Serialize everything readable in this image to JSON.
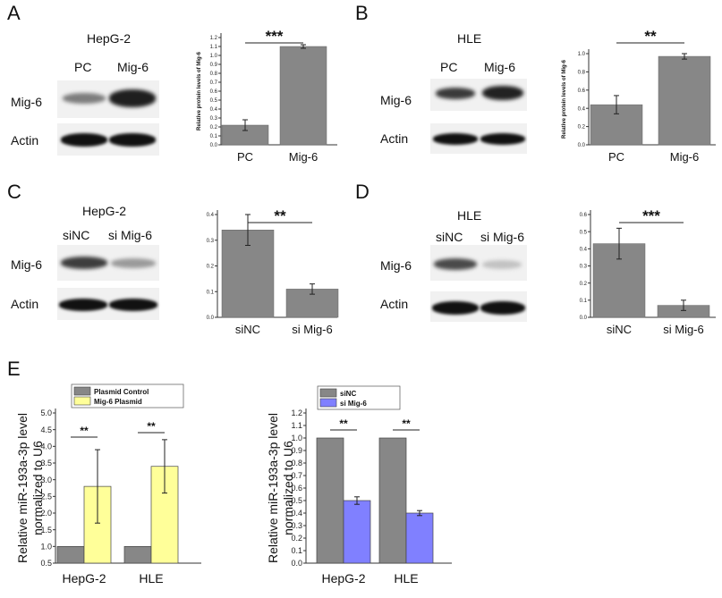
{
  "panels": {
    "a": {
      "letter": "A",
      "cell_line": "HepG-2",
      "lanes": [
        "PC",
        "Mig-6"
      ],
      "rows": [
        "Mig-6",
        "Actin"
      ]
    },
    "b": {
      "letter": "B",
      "cell_line": "HLE",
      "lanes": [
        "PC",
        "Mig-6"
      ],
      "rows": [
        "Mig-6",
        "Actin"
      ]
    },
    "c": {
      "letter": "C",
      "cell_line": "HepG-2",
      "lanes": [
        "siNC",
        "si Mig-6"
      ],
      "rows": [
        "Mig-6",
        "Actin"
      ]
    },
    "d": {
      "letter": "D",
      "cell_line": "HLE",
      "lanes": [
        "siNC",
        "si Mig-6"
      ],
      "rows": [
        "Mig-6",
        "Actin"
      ]
    },
    "e": {
      "letter": "E"
    }
  },
  "colors": {
    "bar_gray": "#878787",
    "yellow": "#ffff99",
    "blue": "#8080ff"
  },
  "chart_data": [
    {
      "id": "chartA",
      "type": "bar",
      "categories": [
        "PC",
        "Mig-6"
      ],
      "values": [
        0.22,
        1.1
      ],
      "errors": [
        0.06,
        0.02
      ],
      "ylabel": "Relative protein levels of Mig-6",
      "ylim": [
        0,
        1.2
      ],
      "yticks": [
        "0.0",
        "0.1",
        "0.2",
        "0.3",
        "0.4",
        "0.5",
        "0.6",
        "0.7",
        "0.8",
        "0.9",
        "1.0",
        "1.1",
        "1.2"
      ],
      "significance": "***"
    },
    {
      "id": "chartB",
      "type": "bar",
      "categories": [
        "PC",
        "Mig-6"
      ],
      "values": [
        0.44,
        0.97
      ],
      "errors": [
        0.1,
        0.03
      ],
      "ylabel": "Relative protein levels of Mig-6",
      "ylim": [
        0,
        1.0
      ],
      "yticks": [
        "0.0",
        "0.2",
        "0.4",
        "0.6",
        "0.8",
        "1.0"
      ],
      "significance": "**"
    },
    {
      "id": "chartC",
      "type": "bar",
      "categories": [
        "siNC",
        "si Mig-6"
      ],
      "values": [
        0.34,
        0.11
      ],
      "errors": [
        0.06,
        0.02
      ],
      "ylabel": "",
      "ylim": [
        0,
        0.4
      ],
      "yticks": [
        "0.0",
        "0.1",
        "0.2",
        "0.3",
        "0.4"
      ],
      "significance": "**"
    },
    {
      "id": "chartD",
      "type": "bar",
      "categories": [
        "siNC",
        "si Mig-6"
      ],
      "values": [
        0.43,
        0.07
      ],
      "errors": [
        0.09,
        0.03
      ],
      "ylabel": "",
      "ylim": [
        0,
        0.6
      ],
      "yticks": [
        "0.0",
        "0.1",
        "0.2",
        "0.3",
        "0.4",
        "0.5",
        "0.6"
      ],
      "significance": "***"
    },
    {
      "id": "chartE1",
      "type": "bar",
      "categories": [
        "HepG-2",
        "HLE"
      ],
      "series": [
        {
          "name": "Plasmid Control",
          "values": [
            1.0,
            1.0
          ],
          "errors": [
            0,
            0
          ],
          "color": "#878787"
        },
        {
          "name": "Mig-6 Plasmid",
          "values": [
            2.8,
            3.4
          ],
          "errors": [
            1.1,
            0.8
          ],
          "color": "#ffff99"
        }
      ],
      "ylabel": "Relative miR-193a-3p level normalized to U6",
      "ylim": [
        0.5,
        5.0
      ],
      "yticks": [
        "0.5",
        "1.0",
        "1.5",
        "2.0",
        "2.5",
        "3.0",
        "3.5",
        "4.0",
        "4.5",
        "5.0"
      ],
      "significance": [
        "**",
        "**"
      ]
    },
    {
      "id": "chartE2",
      "type": "bar",
      "categories": [
        "HepG-2",
        "HLE"
      ],
      "series": [
        {
          "name": "siNC",
          "values": [
            1.0,
            1.0
          ],
          "errors": [
            0,
            0
          ],
          "color": "#878787"
        },
        {
          "name": "si Mig-6",
          "values": [
            0.5,
            0.4
          ],
          "errors": [
            0.03,
            0.02
          ],
          "color": "#8080ff"
        }
      ],
      "ylabel": "Relative miR-193a-3p level normalized to U6",
      "ylim": [
        0.0,
        1.2
      ],
      "yticks": [
        "0.0",
        "0.1",
        "0.2",
        "0.3",
        "0.4",
        "0.5",
        "0.6",
        "0.7",
        "0.8",
        "0.9",
        "1.0",
        "1.1",
        "1.2"
      ],
      "significance": [
        "**",
        "**"
      ]
    }
  ]
}
